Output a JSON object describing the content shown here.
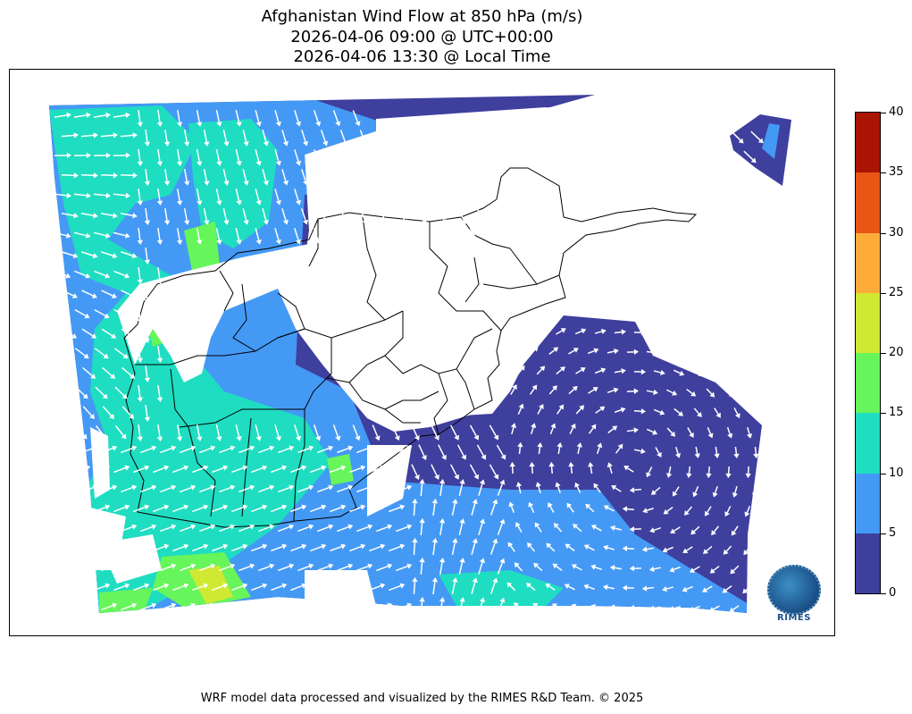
{
  "title": {
    "line1": "Afghanistan Wind Flow at 850 hPa (m/s)",
    "line2": "2026-04-06 09:00 @ UTC+00:00",
    "line3": "2026-04-06 13:30 @ Local Time"
  },
  "colorbar": {
    "ticks": [
      "0",
      "5",
      "10",
      "15",
      "20",
      "25",
      "30",
      "35",
      "40"
    ],
    "range": [
      0,
      40
    ],
    "bins": [
      {
        "from": 0,
        "to": 5,
        "color": "#3f3f9e"
      },
      {
        "from": 5,
        "to": 10,
        "color": "#4499f5"
      },
      {
        "from": 10,
        "to": 15,
        "color": "#1fddc0"
      },
      {
        "from": 15,
        "to": 20,
        "color": "#66f55a"
      },
      {
        "from": 20,
        "to": 25,
        "color": "#cfe832"
      },
      {
        "from": 25,
        "to": 30,
        "color": "#fdac3a"
      },
      {
        "from": 30,
        "to": 35,
        "color": "#e95515"
      },
      {
        "from": 35,
        "to": 40,
        "color": "#a91403"
      }
    ]
  },
  "map": {
    "country": "Afghanistan",
    "vector_color": "#ffffff",
    "boundary_color": "#000000"
  },
  "logo": {
    "text": "RIMES"
  },
  "footer": "WRF model data processed and visualized by the RIMES R&D Team. © 2025"
}
